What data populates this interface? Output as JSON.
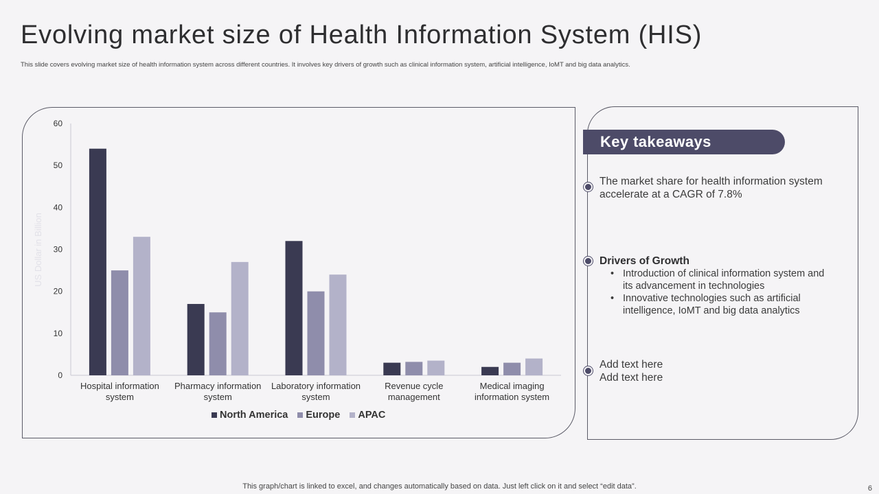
{
  "header": {
    "title": "Evolving market size of Health Information System (HIS)",
    "subtitle": "This slide covers evolving market size of health information system across different countries. It involves key drivers of growth such as clinical information system, artificial intelligence,  IoMT  and big data analytics."
  },
  "chart_data": {
    "type": "bar",
    "ylabel": "US Dollar in Billion",
    "ylim": [
      0,
      60
    ],
    "yticks": [
      "0",
      "10",
      "20",
      "30",
      "40",
      "50",
      "60"
    ],
    "categories": [
      "Hospital information system",
      "Pharmacy information system",
      "Laboratory information system",
      "Revenue cycle management",
      "Medical imaging information system"
    ],
    "category_lines": [
      [
        "Hospital information",
        "system"
      ],
      [
        "Pharmacy information",
        "system"
      ],
      [
        "Laboratory information",
        "system"
      ],
      [
        "Revenue cycle",
        "management"
      ],
      [
        "Medical imaging",
        "information system"
      ]
    ],
    "series": [
      {
        "name": "North America",
        "values": [
          54,
          17,
          32,
          3,
          2
        ],
        "color": "#3a3a52"
      },
      {
        "name": "Europe",
        "values": [
          25,
          15,
          20,
          3.2,
          3
        ],
        "color": "#8f8dab"
      },
      {
        "name": "APAC",
        "values": [
          33,
          27,
          24,
          3.5,
          4
        ],
        "color": "#b3b2c9"
      }
    ],
    "legend_position": "bottom"
  },
  "takeaways": {
    "heading": "Key takeaways",
    "point1": {
      "line1": "The market share for health information system",
      "line2": "accelerate at a CAGR of 7.8%"
    },
    "point2": {
      "heading": "Drivers of Growth",
      "sub1_line1": "Introduction of clinical information system and",
      "sub1_line2": "its advancement in technologies",
      "sub2_line1": "Innovative technologies such as artificial",
      "sub2_line2": "intelligence, IoMT and big data analytics"
    },
    "point3": {
      "line1": "Add text here",
      "line2": "Add text here"
    }
  },
  "footer": {
    "note": "This graph/chart is linked to excel,  and changes automatically based on data. Just left click on it and select “edit data”.",
    "page_number": "6"
  },
  "colors": {
    "accent": "#4d4b68",
    "north_america": "#3a3a52",
    "europe": "#8f8dab",
    "apac": "#b3b2c9"
  }
}
